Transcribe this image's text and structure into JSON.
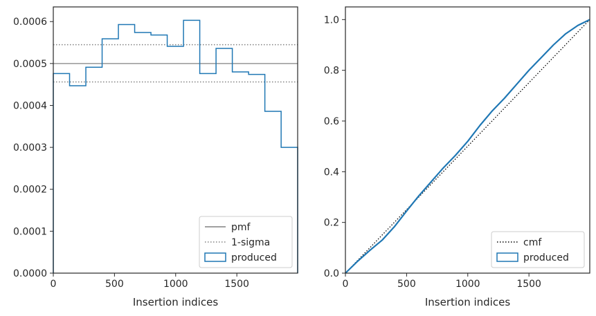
{
  "chart_data": [
    {
      "type": "step",
      "xlabel": "Insertion indices",
      "ylabel": "",
      "xlim": [
        0,
        1997
      ],
      "ylim": [
        0,
        0.000635
      ],
      "xticks": [
        0,
        500,
        1000,
        1500
      ],
      "xtick_labels": [
        "0",
        "500",
        "1000",
        "1500"
      ],
      "yticks": [
        0,
        0.0001,
        0.0002,
        0.0003,
        0.0004,
        0.0005,
        0.0006
      ],
      "ytick_labels": [
        "0.0000",
        "0.0001",
        "0.0002",
        "0.0003",
        "0.0004",
        "0.0005",
        "0.0006"
      ],
      "bin_edges": [
        0,
        133,
        266,
        399,
        532,
        665,
        798,
        931,
        1064,
        1197,
        1330,
        1463,
        1596,
        1729,
        1862,
        1997
      ],
      "series": [
        {
          "name": "produced",
          "color": "#1f77b4",
          "style": "histogram-step",
          "values": [
            0.000476,
            0.000447,
            0.000491,
            0.000559,
            0.000593,
            0.000574,
            0.000568,
            0.000541,
            0.000603,
            0.000476,
            0.000536,
            0.00048,
            0.000474,
            0.000386,
            0.0003
          ]
        }
      ],
      "reference_lines": [
        {
          "name": "pmf",
          "value": 0.0005,
          "color": "#808080",
          "style": "solid"
        },
        {
          "name": "1-sigma",
          "values": [
            0.000545,
            0.000456
          ],
          "color": "#808080",
          "style": "dotted"
        }
      ],
      "legend": {
        "position": "bottom-right",
        "items": [
          "pmf",
          "1-sigma",
          "produced"
        ]
      }
    },
    {
      "type": "line",
      "xlabel": "Insertion indices",
      "ylabel": "",
      "xlim": [
        0,
        1997
      ],
      "ylim": [
        0,
        1.05
      ],
      "xticks": [
        0,
        500,
        1000,
        1500
      ],
      "xtick_labels": [
        "0",
        "500",
        "1000",
        "1500"
      ],
      "yticks": [
        0,
        0.2,
        0.4,
        0.6,
        0.8,
        1.0
      ],
      "ytick_labels": [
        "0.0",
        "0.2",
        "0.4",
        "0.6",
        "0.8",
        "1.0"
      ],
      "series": [
        {
          "name": "cmf",
          "color": "#000000",
          "style": "dotted",
          "x": [
            0,
            1997
          ],
          "y": [
            0,
            1.0
          ]
        },
        {
          "name": "produced",
          "color": "#1f77b4",
          "style": "step",
          "x": [
            0,
            100,
            200,
            300,
            400,
            500,
            600,
            700,
            800,
            900,
            1000,
            1100,
            1200,
            1300,
            1400,
            1500,
            1600,
            1700,
            1800,
            1900,
            1997
          ],
          "y": [
            0,
            0.047,
            0.09,
            0.13,
            0.183,
            0.245,
            0.305,
            0.36,
            0.415,
            0.465,
            0.52,
            0.583,
            0.64,
            0.69,
            0.745,
            0.8,
            0.85,
            0.9,
            0.944,
            0.977,
            1.0
          ]
        }
      ],
      "legend": {
        "position": "bottom-right",
        "items": [
          "cmf",
          "produced"
        ]
      }
    }
  ]
}
